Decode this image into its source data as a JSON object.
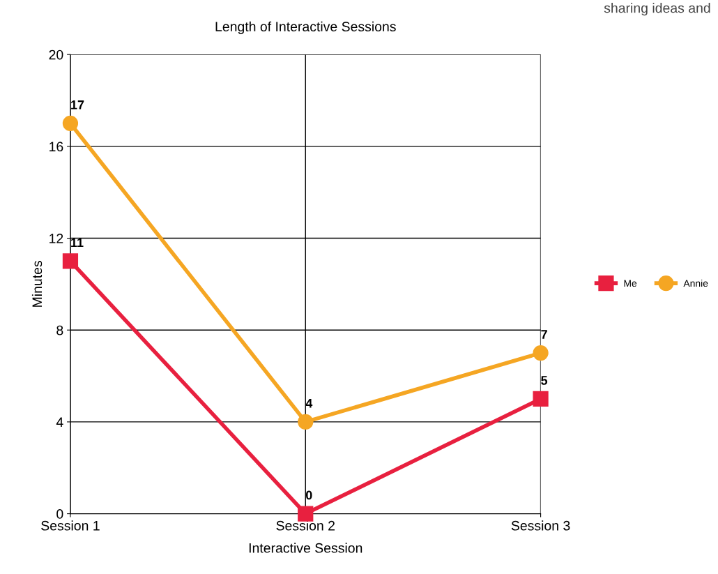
{
  "chart_data": {
    "type": "line",
    "title": "Length of Interactive Sessions",
    "xlabel": "Interactive Session",
    "ylabel": "Minutes",
    "categories": [
      "Session 1",
      "Session 2",
      "Session 3"
    ],
    "series": [
      {
        "name": "Me",
        "color": "#e8203f",
        "marker": "square",
        "values": [
          11,
          0,
          5
        ]
      },
      {
        "name": "Annie",
        "color": "#f5a623",
        "marker": "circle",
        "values": [
          17,
          4,
          7
        ]
      }
    ],
    "ylim": [
      0,
      20
    ],
    "yticks": [
      0,
      4,
      8,
      12,
      16,
      20
    ],
    "grid": true,
    "legend": "right",
    "data_labels": true,
    "line_style": "solid",
    "annotations": [
      "sharing ideas and"
    ]
  }
}
